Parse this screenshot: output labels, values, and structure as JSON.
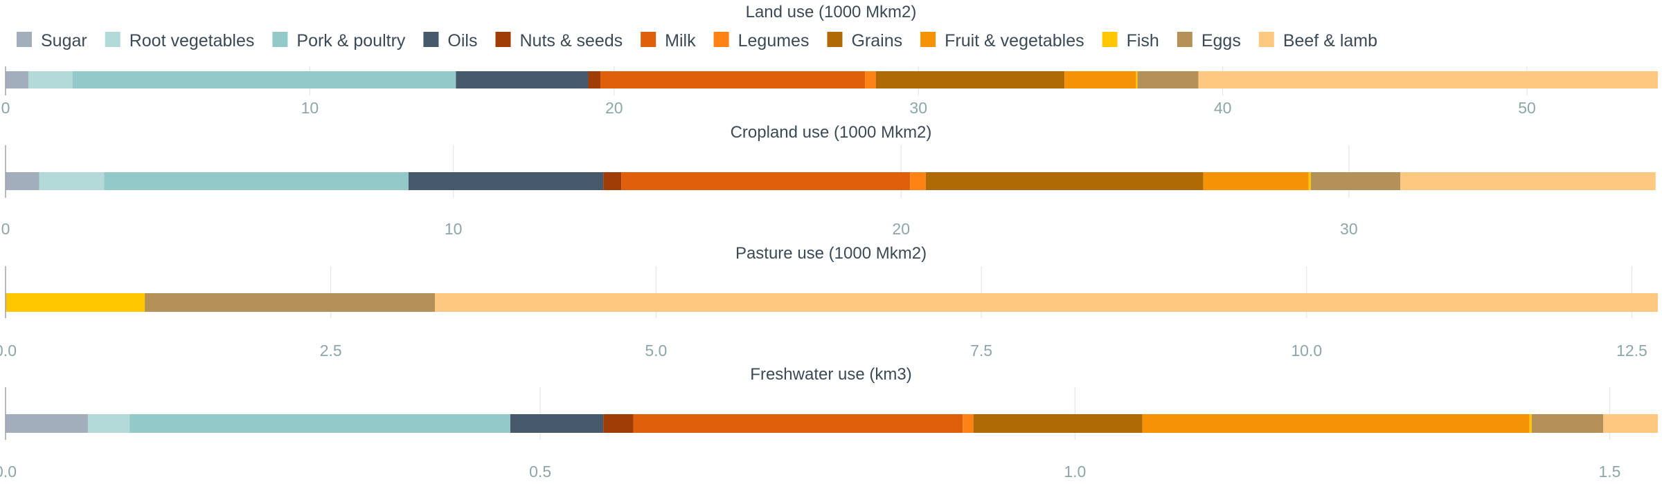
{
  "chart_data": {
    "type": "bar",
    "orientation": "horizontal",
    "stacked": true,
    "grid": true,
    "legend_position": "top",
    "categories": [
      "Sugar",
      "Root vegetables",
      "Pork & poultry",
      "Oils",
      "Nuts & seeds",
      "Milk",
      "Legumes",
      "Grains",
      "Fruit & vegetables",
      "Fish",
      "Eggs",
      "Beef & lamb"
    ],
    "colors": [
      "#a2aebb",
      "#b3d9d9",
      "#94c9c9",
      "#465a6b",
      "#a03c06",
      "#e05f0a",
      "#ff8214",
      "#b06a05",
      "#f59305",
      "#ffc700",
      "#b5915a",
      "#ffc880"
    ],
    "panels": [
      {
        "title": "Land use (1000 Mkm2)",
        "xlim": [
          0,
          54.3
        ],
        "ticks": [
          0,
          10,
          20,
          30,
          40,
          50
        ],
        "tick_labels": [
          "0",
          "10",
          "20",
          "30",
          "40",
          "50"
        ],
        "values": [
          0.75,
          1.45,
          12.6,
          4.35,
          0.4,
          8.7,
          0.35,
          6.2,
          2.35,
          0.05,
          2.0,
          15.1
        ]
      },
      {
        "title": "Cropland use (1000 Mkm2)",
        "xlim": [
          0,
          36.9
        ],
        "ticks": [
          0,
          10,
          20,
          30
        ],
        "tick_labels": [
          "0",
          "10",
          "20",
          "30"
        ],
        "values": [
          0.75,
          1.45,
          6.8,
          4.35,
          0.4,
          6.45,
          0.35,
          6.2,
          2.35,
          0.05,
          2.0,
          5.7
        ]
      },
      {
        "title": "Pasture use (1000 Mkm2)",
        "xlim": [
          0,
          12.7
        ],
        "ticks": [
          0,
          2.5,
          5,
          7.5,
          10,
          12.5
        ],
        "tick_labels": [
          "0.0",
          "2.5",
          "5.0",
          "7.5",
          "10.0",
          "12.5"
        ],
        "values": [
          0,
          0,
          0,
          0,
          0,
          0,
          0,
          0,
          0,
          1.07,
          2.23,
          9.4
        ]
      },
      {
        "title": "Freshwater use (km3)",
        "xlim": [
          0,
          1.545
        ],
        "ticks": [
          0,
          0.5,
          1,
          1.5
        ],
        "tick_labels": [
          "0.0",
          "0.5",
          "1.0",
          "1.5"
        ],
        "values": [
          0.077,
          0.039,
          0.356,
          0.087,
          0.028,
          0.308,
          0.01,
          0.158,
          0.362,
          0.002,
          0.067,
          0.051
        ]
      }
    ]
  }
}
